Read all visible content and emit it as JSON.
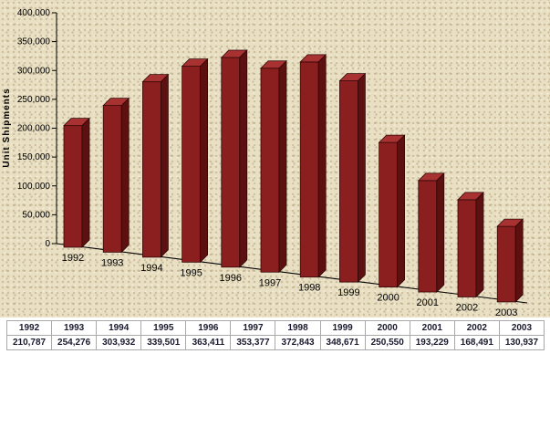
{
  "chart_data": {
    "type": "bar",
    "title": "",
    "categories": [
      "1992",
      "1993",
      "1994",
      "1995",
      "1996",
      "1997",
      "1998",
      "1999",
      "2000",
      "2001",
      "2002",
      "2003"
    ],
    "values": [
      210787,
      254276,
      303932,
      339501,
      363411,
      353377,
      372843,
      348671,
      250550,
      193229,
      168491,
      130937
    ],
    "xlabel": "",
    "ylabel": "Unit Shipments",
    "ylim": [
      0,
      400000
    ],
    "yticks": [
      0,
      50000,
      100000,
      150000,
      200000,
      250000,
      300000,
      350000,
      400000
    ],
    "legend": "none",
    "grid": false,
    "style": "3d-column"
  },
  "colors": {
    "background": "#e9dfc2",
    "bar_front": "#8b1e1e",
    "bar_top": "#a83232",
    "bar_side": "#5c1010",
    "bar_stroke": "#2b0505",
    "axis": "#000000",
    "table_border": "#a9a9a9",
    "text": "#000000"
  },
  "table": {
    "years": [
      "1992",
      "1993",
      "1994",
      "1995",
      "1996",
      "1997",
      "1998",
      "1999",
      "2000",
      "2001",
      "2002",
      "2003"
    ],
    "values": [
      "210,787",
      "254,276",
      "303,932",
      "339,501",
      "363,411",
      "353,377",
      "372,843",
      "348,671",
      "250,550",
      "193,229",
      "168,491",
      "130,937"
    ]
  }
}
